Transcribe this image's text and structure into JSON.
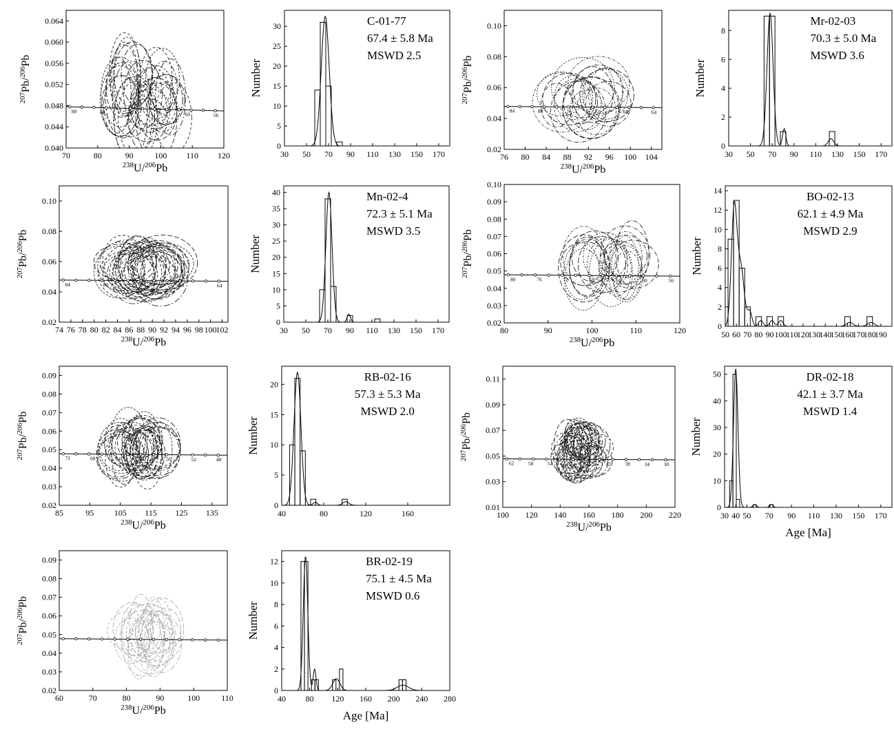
{
  "chart_data": [
    {
      "id": "c1",
      "kind": "concordia",
      "type": "scatter",
      "sample": "C-01-77",
      "xlabel": "238U/206Pb",
      "ylabel": "207Pb/206Pb",
      "xlim": [
        70,
        120
      ],
      "ylim": [
        0.04,
        0.066
      ],
      "xticks": [
        70,
        80,
        90,
        100,
        110,
        120
      ],
      "yticks": [
        0.04,
        0.044,
        0.048,
        0.052,
        0.056,
        0.06,
        0.064
      ],
      "ydec": 3,
      "concordia_ticks": [
        "88",
        "84",
        "80",
        "76",
        "60",
        "56"
      ],
      "ellipses": {
        "count": 34,
        "xmin": 86,
        "xmax": 104,
        "ymin": 0.045,
        "ymax": 0.054,
        "rx_min": 4,
        "rx_max": 7,
        "ry_min": 0.004,
        "ry_max": 0.008,
        "style": "dashed",
        "color": "#222222"
      }
    },
    {
      "id": "h1",
      "kind": "histogram",
      "type": "bar",
      "title": "C-01-77",
      "age": "67.4 ± 5.8 Ma",
      "mswd": "MSWD 2.5",
      "text_align": "left",
      "xlabel": "",
      "ylabel": "Number",
      "xlim": [
        30,
        180
      ],
      "ylim": [
        0,
        34
      ],
      "xticks": [
        30,
        50,
        70,
        90,
        110,
        130,
        150,
        170
      ],
      "yticks": [
        0,
        5,
        10,
        15,
        20,
        25,
        30
      ],
      "bin_width": 5,
      "bins": [
        {
          "x": 60,
          "count": 14
        },
        {
          "x": 65,
          "count": 31
        },
        {
          "x": 70,
          "count": 15
        },
        {
          "x": 80,
          "count": 1
        }
      ],
      "peaks": [
        {
          "x": 67,
          "sigma": 3.6,
          "h": 32.5
        }
      ]
    },
    {
      "id": "c2",
      "kind": "concordia",
      "type": "scatter",
      "sample": "Mr-02-03",
      "xlabel": "238U/206Pb",
      "ylabel": "207Pb/206Pb",
      "xlim": [
        76,
        106
      ],
      "ylim": [
        0.02,
        0.11
      ],
      "xticks": [
        76,
        80,
        84,
        88,
        92,
        96,
        100,
        104
      ],
      "yticks": [
        0.02,
        0.04,
        0.06,
        0.08,
        0.1
      ],
      "ydec": 2,
      "concordia_ticks": [
        "84",
        "80",
        "76",
        "72",
        "68",
        "64"
      ],
      "ellipses": {
        "count": 20,
        "xmin": 86,
        "xmax": 96,
        "ymin": 0.044,
        "ymax": 0.062,
        "rx_min": 3,
        "rx_max": 6,
        "ry_min": 0.012,
        "ry_max": 0.02,
        "style": "dotdash",
        "color": "#222222"
      }
    },
    {
      "id": "h2",
      "kind": "histogram",
      "type": "bar",
      "title": "Mr-02-03",
      "age": "70.3 ± 5.0 Ma",
      "mswd": "MSWD 3.6",
      "text_align": "left",
      "xlabel": "",
      "ylabel": "Number",
      "xlim": [
        30,
        180
      ],
      "ylim": [
        0,
        9.4
      ],
      "xticks": [
        30,
        50,
        70,
        90,
        110,
        130,
        150,
        170
      ],
      "yticks": [
        0,
        2,
        4,
        6,
        8
      ],
      "bin_width": 5,
      "bins": [
        {
          "x": 65,
          "count": 9
        },
        {
          "x": 70,
          "count": 9
        },
        {
          "x": 80,
          "count": 1
        },
        {
          "x": 125,
          "count": 1
        }
      ],
      "peaks": [
        {
          "x": 68,
          "sigma": 2.8,
          "h": 9.2
        },
        {
          "x": 81,
          "sigma": 1.5,
          "h": 1.2
        },
        {
          "x": 124,
          "sigma": 2.5,
          "h": 0.5
        }
      ]
    },
    {
      "id": "c3",
      "kind": "concordia",
      "type": "scatter",
      "sample": "Mn-02-4",
      "xlabel": "238U/206Pb",
      "ylabel": "207Pb/206Pb",
      "xlim": [
        74,
        103
      ],
      "ylim": [
        0.02,
        0.11
      ],
      "xticks": [
        74,
        76,
        78,
        80,
        82,
        84,
        86,
        88,
        90,
        92,
        94,
        96,
        98,
        100,
        102
      ],
      "yticks": [
        0.02,
        0.04,
        0.06,
        0.08,
        0.1
      ],
      "ydec": 2,
      "concordia_ticks": [
        "84",
        "80",
        "76",
        "68",
        "64"
      ],
      "ellipses": {
        "count": 36,
        "xmin": 84,
        "xmax": 92,
        "ymin": 0.048,
        "ymax": 0.06,
        "rx_min": 3,
        "rx_max": 6,
        "ry_min": 0.012,
        "ry_max": 0.02,
        "style": "dashed",
        "color": "#222222"
      }
    },
    {
      "id": "h3",
      "kind": "histogram",
      "type": "bar",
      "title": "Mn-02-4",
      "age": "72.3 ± 5.1 Ma",
      "mswd": "MSWD 3.5",
      "text_align": "left",
      "xlabel": "",
      "ylabel": "Number",
      "xlim": [
        30,
        180
      ],
      "ylim": [
        0,
        42
      ],
      "xticks": [
        30,
        50,
        70,
        90,
        110,
        130,
        150,
        170
      ],
      "yticks": [
        0,
        5,
        10,
        15,
        20,
        25,
        30,
        35,
        40
      ],
      "bin_width": 5,
      "bins": [
        {
          "x": 65,
          "count": 10
        },
        {
          "x": 70,
          "count": 38
        },
        {
          "x": 75,
          "count": 11
        },
        {
          "x": 90,
          "count": 2
        },
        {
          "x": 115,
          "count": 1
        }
      ],
      "peaks": [
        {
          "x": 71,
          "sigma": 2.8,
          "h": 40
        },
        {
          "x": 89,
          "sigma": 1.5,
          "h": 2.5
        }
      ]
    },
    {
      "id": "c4",
      "kind": "concordia",
      "type": "scatter",
      "sample": "BO-02-13",
      "xlabel": "238U/206Pb",
      "ylabel": "207Pb/206Pb",
      "xlim": [
        80,
        120
      ],
      "ylim": [
        0.02,
        0.1
      ],
      "xticks": [
        80,
        90,
        100,
        110,
        120
      ],
      "yticks": [
        0.02,
        0.03,
        0.04,
        0.05,
        0.06,
        0.07,
        0.08,
        0.09,
        0.1
      ],
      "ydec": 2,
      "concordia_ticks": [
        "80",
        "76",
        "72",
        "68",
        "64",
        "60",
        "56"
      ],
      "ellipses": {
        "count": 22,
        "xmin": 96,
        "xmax": 110,
        "ymin": 0.042,
        "ymax": 0.06,
        "rx_min": 3,
        "rx_max": 6,
        "ry_min": 0.012,
        "ry_max": 0.02,
        "style": "dotdash",
        "color": "#222222"
      }
    },
    {
      "id": "h4",
      "kind": "histogram",
      "type": "bar",
      "title": "BO-02-13",
      "age": "62.1 ± 4.9 Ma",
      "mswd": "MSWD 2.9",
      "text_align": "middle",
      "xlabel": "",
      "ylabel": "Number",
      "xlim": [
        50,
        200
      ],
      "ylim": [
        0,
        14.5
      ],
      "xticks": [
        50,
        60,
        70,
        80,
        90,
        100,
        110,
        120,
        130,
        140,
        150,
        160,
        170,
        180,
        190
      ],
      "yticks": [
        0,
        2,
        4,
        6,
        8,
        10,
        12,
        14
      ],
      "bin_width": 5,
      "bins": [
        {
          "x": 55,
          "count": 9
        },
        {
          "x": 60,
          "count": 13
        },
        {
          "x": 65,
          "count": 6
        },
        {
          "x": 70,
          "count": 2
        },
        {
          "x": 80,
          "count": 1
        },
        {
          "x": 90,
          "count": 1
        },
        {
          "x": 100,
          "count": 1
        },
        {
          "x": 160,
          "count": 1
        },
        {
          "x": 180,
          "count": 1
        }
      ],
      "peaks": [
        {
          "x": 58,
          "sigma": 2.5,
          "h": 12
        },
        {
          "x": 64,
          "sigma": 3,
          "h": 6
        },
        {
          "x": 72,
          "sigma": 2,
          "h": 1.5
        },
        {
          "x": 82,
          "sigma": 2,
          "h": 0.6
        },
        {
          "x": 92,
          "sigma": 2,
          "h": 0.6
        },
        {
          "x": 100,
          "sigma": 2,
          "h": 0.6
        },
        {
          "x": 162,
          "sigma": 3,
          "h": 0.4
        },
        {
          "x": 181,
          "sigma": 3,
          "h": 0.4
        }
      ]
    },
    {
      "id": "c5",
      "kind": "concordia",
      "type": "scatter",
      "sample": "RB-02-16",
      "xlabel": "238U/206Pb",
      "ylabel": "207Pb/206Pb",
      "xlim": [
        85,
        140
      ],
      "ylim": [
        0.02,
        0.095
      ],
      "xticks": [
        85,
        95,
        105,
        115,
        125,
        135
      ],
      "yticks": [
        0.02,
        0.03,
        0.04,
        0.05,
        0.06,
        0.07,
        0.08,
        0.09
      ],
      "ydec": 2,
      "concordia_ticks": [
        "72",
        "68",
        "64",
        "60",
        "56",
        "52",
        "48"
      ],
      "ellipses": {
        "count": 34,
        "xmin": 104,
        "xmax": 118,
        "ymin": 0.045,
        "ymax": 0.058,
        "rx_min": 4,
        "rx_max": 8,
        "ry_min": 0.01,
        "ry_max": 0.017,
        "style": "dashed",
        "color": "#222222"
      }
    },
    {
      "id": "h5",
      "kind": "histogram",
      "type": "bar",
      "title": "RB-02-16",
      "age": "57.3 ± 5.3 Ma",
      "mswd": "MSWD 2.0",
      "text_align": "middle",
      "xlabel": "",
      "ylabel": "Number",
      "xlim": [
        40,
        200
      ],
      "ylim": [
        0,
        23
      ],
      "xticks": [
        40,
        80,
        120,
        160
      ],
      "yticks": [
        0,
        5,
        10,
        15,
        20
      ],
      "bin_width": 5,
      "bins": [
        {
          "x": 50,
          "count": 10
        },
        {
          "x": 55,
          "count": 21
        },
        {
          "x": 60,
          "count": 9
        },
        {
          "x": 70,
          "count": 1
        },
        {
          "x": 100,
          "count": 1
        }
      ],
      "peaks": [
        {
          "x": 55,
          "sigma": 3.3,
          "h": 22
        },
        {
          "x": 72,
          "sigma": 2,
          "h": 0.5
        },
        {
          "x": 101,
          "sigma": 3,
          "h": 0.6
        }
      ]
    },
    {
      "id": "c6",
      "kind": "concordia",
      "type": "scatter",
      "sample": "DR-02-18",
      "xlabel": "238U/206Pb",
      "ylabel": "207Pb/206Pb",
      "xlim": [
        100,
        220
      ],
      "ylim": [
        0.01,
        0.12
      ],
      "xticks": [
        100,
        120,
        140,
        160,
        180,
        200,
        220
      ],
      "yticks": [
        0.01,
        0.03,
        0.05,
        0.07,
        0.09,
        0.11
      ],
      "ydec": 2,
      "concordia_ticks": [
        "62",
        "58",
        "54",
        "50",
        "46",
        "42",
        "38",
        "34",
        "30"
      ],
      "ellipses": {
        "count": 40,
        "xmin": 145,
        "xmax": 165,
        "ymin": 0.045,
        "ymax": 0.065,
        "rx_min": 6,
        "rx_max": 14,
        "ry_min": 0.01,
        "ry_max": 0.02,
        "style": "dashed",
        "color": "#222222"
      }
    },
    {
      "id": "h6",
      "kind": "histogram",
      "type": "bar",
      "title": "DR-02-18",
      "age": "42.1 ± 3.7 Ma",
      "mswd": "MSWD 1.4",
      "text_align": "middle",
      "xlabel": "Age [Ma]",
      "ylabel": "Number",
      "xlim": [
        30,
        180
      ],
      "ylim": [
        0,
        53
      ],
      "xticks": [
        30,
        40,
        50,
        70,
        90,
        110,
        130,
        150,
        170
      ],
      "yticks": [
        0,
        10,
        20,
        30,
        40,
        50
      ],
      "bin_width": 3,
      "bins": [
        {
          "x": 36,
          "count": 10
        },
        {
          "x": 39,
          "count": 50
        },
        {
          "x": 42,
          "count": 3
        },
        {
          "x": 57,
          "count": 1
        },
        {
          "x": 72,
          "count": 1
        }
      ],
      "peaks": [
        {
          "x": 40,
          "sigma": 2,
          "h": 52
        },
        {
          "x": 57,
          "sigma": 1.5,
          "h": 1
        },
        {
          "x": 72,
          "sigma": 1.5,
          "h": 1
        }
      ]
    },
    {
      "id": "c7",
      "kind": "concordia",
      "type": "scatter",
      "sample": "BR-02-19",
      "xlabel": "238U/206Pb",
      "ylabel": "207Pb/206Pb",
      "xlim": [
        60,
        110
      ],
      "ylim": [
        0.02,
        0.095
      ],
      "xticks": [
        60,
        70,
        80,
        90,
        100,
        110
      ],
      "yticks": [
        0.02,
        0.03,
        0.04,
        0.05,
        0.06,
        0.07,
        0.08,
        0.09
      ],
      "ydec": 2,
      "concordia_ticks": [],
      "ellipses": {
        "count": 22,
        "xmin": 80,
        "xmax": 92,
        "ymin": 0.042,
        "ymax": 0.056,
        "rx_min": 3,
        "rx_max": 7,
        "ry_min": 0.01,
        "ry_max": 0.02,
        "style": "dashed",
        "color": "#aaaaaa"
      }
    },
    {
      "id": "h7",
      "kind": "histogram",
      "type": "bar",
      "title": "BR-02-19",
      "age": "75.1 ± 4.5 Ma",
      "mswd": "MSWD 0.6",
      "text_align": "left",
      "xlabel": "Age [Ma]",
      "ylabel": "Number",
      "xlim": [
        40,
        280
      ],
      "ylim": [
        0,
        13
      ],
      "xticks": [
        40,
        80,
        120,
        160,
        200,
        240,
        280
      ],
      "yticks": [
        0,
        2,
        4,
        6,
        8,
        10,
        12
      ],
      "bin_width": 5,
      "bins": [
        {
          "x": 70,
          "count": 12
        },
        {
          "x": 75,
          "count": 12
        },
        {
          "x": 85,
          "count": 1
        },
        {
          "x": 90,
          "count": 1
        },
        {
          "x": 115,
          "count": 1
        },
        {
          "x": 125,
          "count": 2
        },
        {
          "x": 210,
          "count": 1
        },
        {
          "x": 215,
          "count": 1
        }
      ],
      "peaks": [
        {
          "x": 74,
          "sigma": 3.2,
          "h": 12.5
        },
        {
          "x": 87,
          "sigma": 2,
          "h": 2
        },
        {
          "x": 118,
          "sigma": 5,
          "h": 1.1
        },
        {
          "x": 213,
          "sigma": 8,
          "h": 0.5
        }
      ]
    }
  ]
}
